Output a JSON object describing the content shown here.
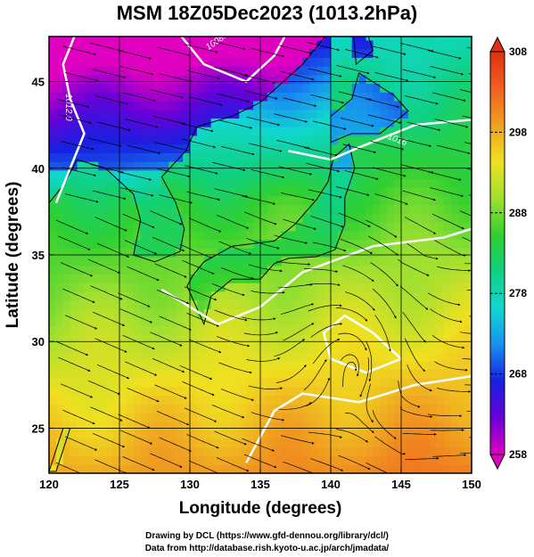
{
  "title": "MSM 18Z05Dec2023 (1013.2hPa)",
  "credits": {
    "line1": "Drawing by DCL (https://www.gfd-dennou.org/library/dcl/)",
    "line2": "Data from http://database.rish.kyoto-u.ac.jp/arch/jmadata/"
  },
  "chart_data": {
    "type": "heatmap",
    "title": "MSM 18Z05Dec2023 (1013.2hPa)",
    "xlabel": "Longitude (degrees)",
    "ylabel": "Latitude  (degrees)",
    "xlim": [
      120,
      150
    ],
    "ylim": [
      22.4,
      47.6
    ],
    "x_ticks": [
      "120",
      "125",
      "130",
      "135",
      "140",
      "145",
      "150"
    ],
    "y_ticks": [
      "25",
      "30",
      "35",
      "40",
      "45"
    ],
    "grid": true,
    "colorbar": {
      "min": 258,
      "max": 308,
      "ticks": [
        "258",
        "268",
        "278",
        "288",
        "298",
        "308"
      ],
      "colors": [
        "#e000c0",
        "#6a00d8",
        "#1820e0",
        "#1890f0",
        "#10d8d0",
        "#10d080",
        "#30d030",
        "#a0e030",
        "#f0e020",
        "#f0a020",
        "#f06020",
        "#e03010"
      ]
    },
    "isobar_labels": [
      "1012.0",
      "1008.0",
      "1016"
    ]
  }
}
